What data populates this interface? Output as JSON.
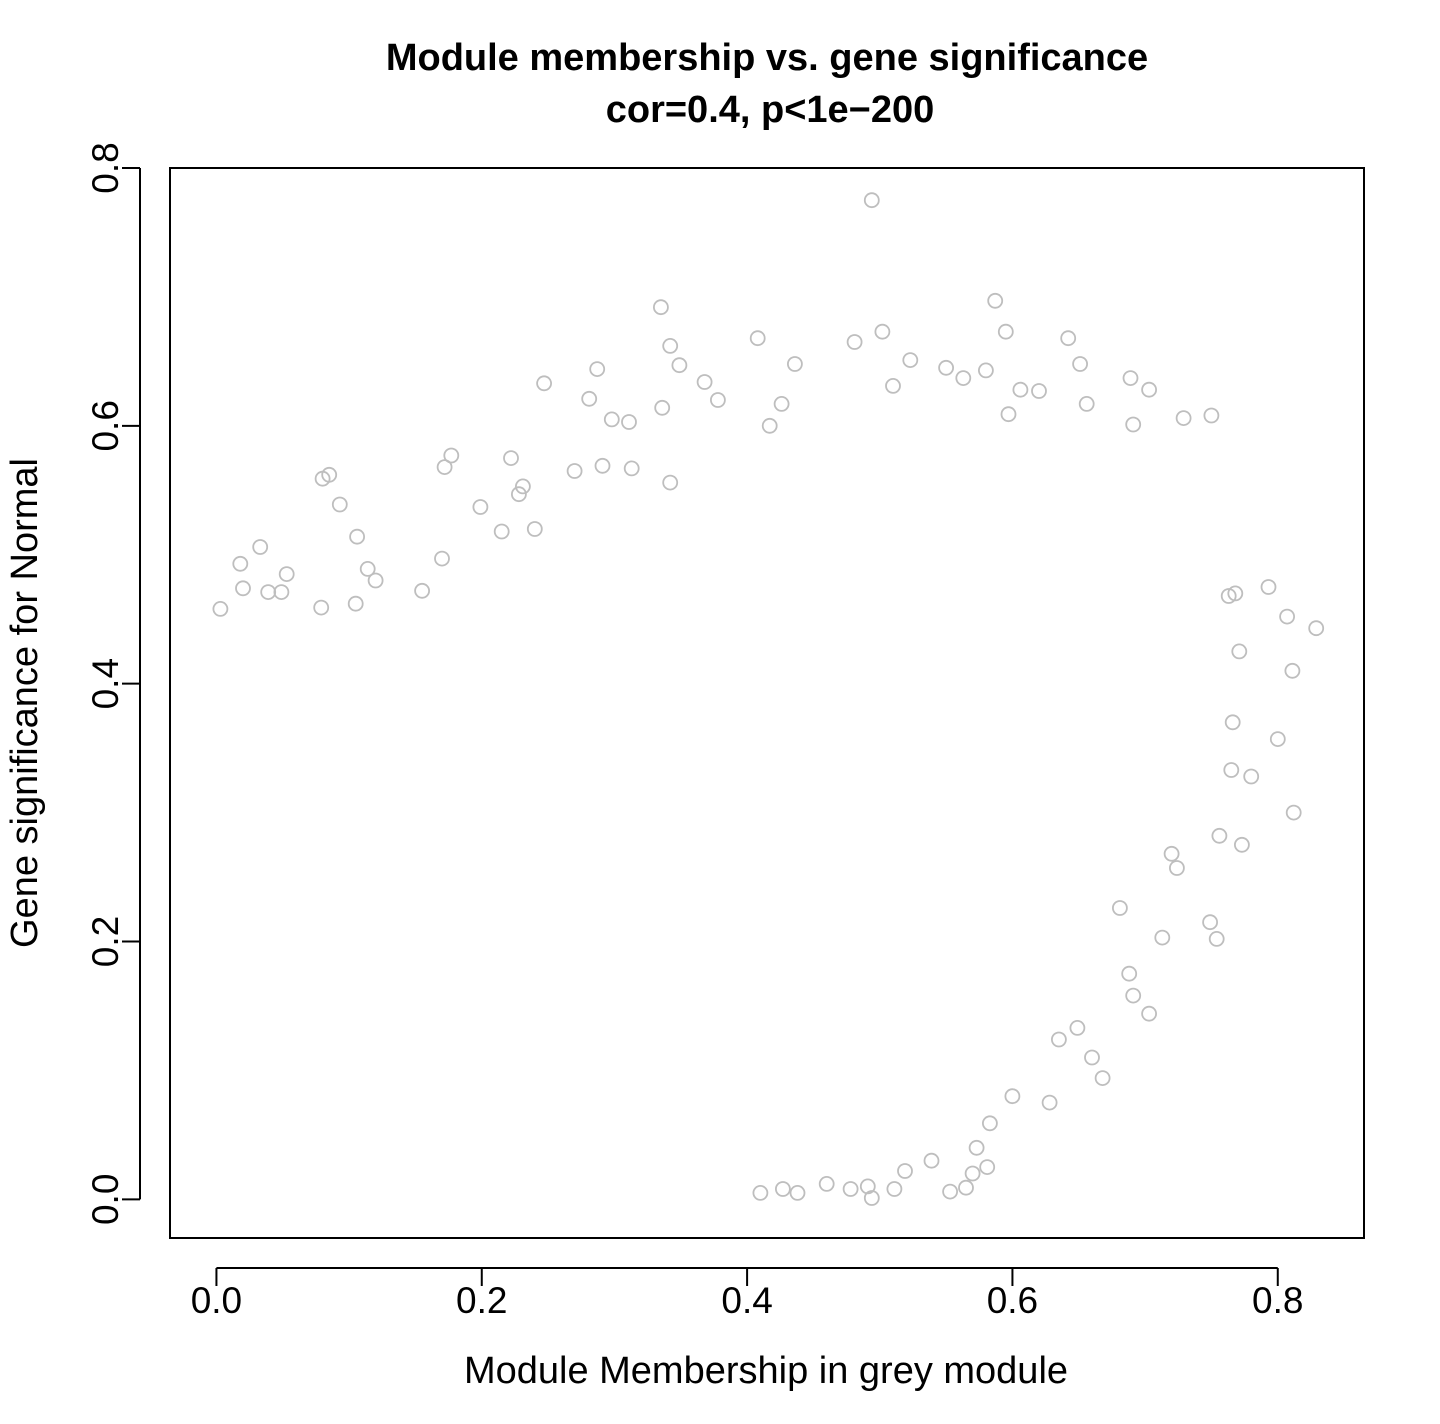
{
  "chart_data": {
    "type": "scatter",
    "title": "Module membership vs. gene significance",
    "subtitle": "cor=0.4, p<1e−200",
    "xlabel": "Module Membership in grey module",
    "ylabel": "Gene significance for Normal",
    "xlim": [
      -0.035,
      0.865
    ],
    "ylim": [
      -0.03,
      0.8
    ],
    "xticks": [
      0.0,
      0.2,
      0.4,
      0.6,
      0.8
    ],
    "xtick_labels": [
      "0.0",
      "0.2",
      "0.4",
      "0.6",
      "0.8"
    ],
    "yticks": [
      0.0,
      0.2,
      0.4,
      0.6,
      0.8
    ],
    "ytick_labels": [
      "0.0",
      "0.2",
      "0.4",
      "0.6",
      "0.8"
    ],
    "marker": "open-circle",
    "grid": false,
    "legend": "none",
    "colors": {
      "points": "#bebebe",
      "axes": "#000000",
      "background": "#ffffff"
    },
    "series": [
      {
        "points": [
          [
            0.494,
            0.775
          ],
          [
            0.335,
            0.692
          ],
          [
            0.587,
            0.697
          ],
          [
            0.502,
            0.673
          ],
          [
            0.595,
            0.673
          ],
          [
            0.408,
            0.668
          ],
          [
            0.642,
            0.668
          ],
          [
            0.481,
            0.665
          ],
          [
            0.342,
            0.662
          ],
          [
            0.523,
            0.651
          ],
          [
            0.349,
            0.647
          ],
          [
            0.436,
            0.648
          ],
          [
            0.55,
            0.645
          ],
          [
            0.651,
            0.648
          ],
          [
            0.287,
            0.644
          ],
          [
            0.58,
            0.643
          ],
          [
            0.368,
            0.634
          ],
          [
            0.247,
            0.633
          ],
          [
            0.563,
            0.637
          ],
          [
            0.689,
            0.637
          ],
          [
            0.606,
            0.628
          ],
          [
            0.703,
            0.628
          ],
          [
            0.281,
            0.621
          ],
          [
            0.378,
            0.62
          ],
          [
            0.51,
            0.631
          ],
          [
            0.62,
            0.627
          ],
          [
            0.336,
            0.614
          ],
          [
            0.426,
            0.617
          ],
          [
            0.656,
            0.617
          ],
          [
            0.729,
            0.606
          ],
          [
            0.75,
            0.608
          ],
          [
            0.298,
            0.605
          ],
          [
            0.311,
            0.603
          ],
          [
            0.417,
            0.6
          ],
          [
            0.597,
            0.609
          ],
          [
            0.691,
            0.601
          ],
          [
            0.222,
            0.575
          ],
          [
            0.177,
            0.577
          ],
          [
            0.085,
            0.562
          ],
          [
            0.08,
            0.559
          ],
          [
            0.172,
            0.568
          ],
          [
            0.291,
            0.569
          ],
          [
            0.313,
            0.567
          ],
          [
            0.231,
            0.553
          ],
          [
            0.228,
            0.547
          ],
          [
            0.342,
            0.556
          ],
          [
            0.27,
            0.565
          ],
          [
            0.093,
            0.539
          ],
          [
            0.106,
            0.514
          ],
          [
            0.033,
            0.506
          ],
          [
            0.018,
            0.493
          ],
          [
            0.053,
            0.485
          ],
          [
            0.039,
            0.471
          ],
          [
            0.02,
            0.474
          ],
          [
            0.049,
            0.471
          ],
          [
            0.003,
            0.458
          ],
          [
            0.079,
            0.459
          ],
          [
            0.114,
            0.489
          ],
          [
            0.12,
            0.48
          ],
          [
            0.105,
            0.462
          ],
          [
            0.199,
            0.537
          ],
          [
            0.17,
            0.497
          ],
          [
            0.155,
            0.472
          ],
          [
            0.215,
            0.518
          ],
          [
            0.24,
            0.52
          ],
          [
            0.793,
            0.475
          ],
          [
            0.807,
            0.452
          ],
          [
            0.829,
            0.443
          ],
          [
            0.811,
            0.41
          ],
          [
            0.8,
            0.357
          ],
          [
            0.812,
            0.3
          ],
          [
            0.763,
            0.468
          ],
          [
            0.768,
            0.47
          ],
          [
            0.771,
            0.425
          ],
          [
            0.766,
            0.37
          ],
          [
            0.765,
            0.333
          ],
          [
            0.78,
            0.328
          ],
          [
            0.773,
            0.275
          ],
          [
            0.756,
            0.282
          ],
          [
            0.749,
            0.215
          ],
          [
            0.754,
            0.202
          ],
          [
            0.713,
            0.203
          ],
          [
            0.72,
            0.268
          ],
          [
            0.724,
            0.257
          ],
          [
            0.703,
            0.144
          ],
          [
            0.688,
            0.175
          ],
          [
            0.691,
            0.158
          ],
          [
            0.681,
            0.226
          ],
          [
            0.668,
            0.094
          ],
          [
            0.66,
            0.11
          ],
          [
            0.649,
            0.133
          ],
          [
            0.635,
            0.124
          ],
          [
            0.628,
            0.075
          ],
          [
            0.6,
            0.08
          ],
          [
            0.583,
            0.059
          ],
          [
            0.57,
            0.02
          ],
          [
            0.565,
            0.009
          ],
          [
            0.553,
            0.006
          ],
          [
            0.494,
            0.001
          ],
          [
            0.491,
            0.01
          ],
          [
            0.539,
            0.03
          ],
          [
            0.519,
            0.022
          ],
          [
            0.511,
            0.008
          ],
          [
            0.478,
            0.008
          ],
          [
            0.46,
            0.012
          ],
          [
            0.438,
            0.005
          ],
          [
            0.427,
            0.008
          ],
          [
            0.41,
            0.005
          ],
          [
            0.573,
            0.04
          ],
          [
            0.581,
            0.025
          ]
        ]
      }
    ]
  }
}
